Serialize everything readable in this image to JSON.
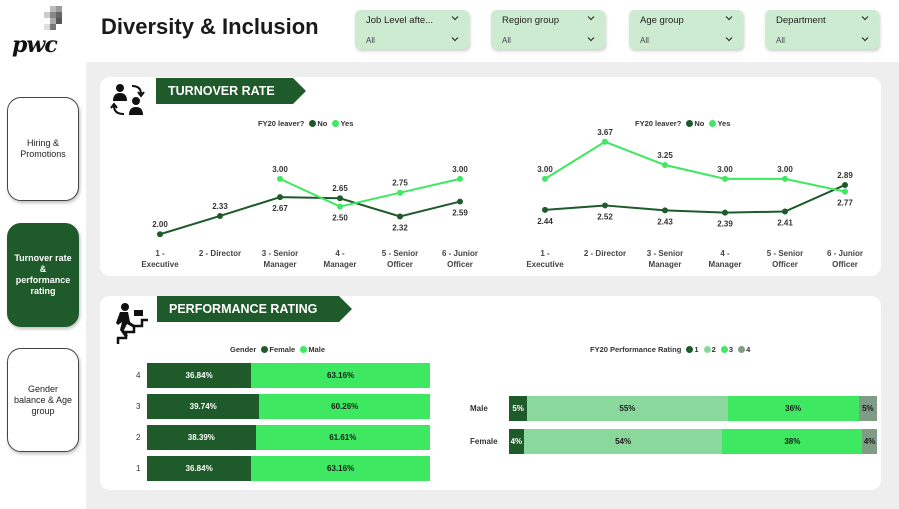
{
  "logo": {
    "text": "pwc"
  },
  "nav": [
    {
      "label": "Hiring & Promotions",
      "active": false
    },
    {
      "label": "Turnover rate & performance rating",
      "active": true
    },
    {
      "label": "Gender balance & Age group",
      "active": false
    }
  ],
  "header": {
    "title": "Diversity & Inclusion"
  },
  "slicers": [
    {
      "label": "Job Level afte...",
      "value": "All"
    },
    {
      "label": "Region group",
      "value": "All"
    },
    {
      "label": "Age group",
      "value": "All"
    },
    {
      "label": "Department",
      "value": "All"
    }
  ],
  "turnover": {
    "banner": "TURNOVER RATE",
    "icon": "people-exchange-icon",
    "colors": {
      "no": "#1e5a2a",
      "yes": "#3ee860"
    }
  },
  "performance": {
    "banner": "PERFORMANCE RATING",
    "icon": "person-climbing-stairs-icon"
  },
  "chart_data": [
    {
      "type": "line",
      "legend_title": "FY20 leaver?",
      "legend": [
        "No",
        "Yes"
      ],
      "categories": [
        [
          "1 -",
          "Executive"
        ],
        [
          "2 - Director"
        ],
        [
          "3 - Senior",
          "Manager"
        ],
        [
          "4 -",
          "Manager"
        ],
        [
          "5 - Senior",
          "Officer"
        ],
        [
          "6 - Junior",
          "Officer"
        ]
      ],
      "series": [
        {
          "name": "No",
          "values": [
            2.0,
            2.33,
            2.67,
            2.65,
            2.32,
            2.59
          ],
          "labels": [
            "2.00",
            "2.33",
            "2.67",
            "2.65",
            "2.32",
            "2.59"
          ]
        },
        {
          "name": "Yes",
          "values": [
            null,
            null,
            3.0,
            2.5,
            2.75,
            3.0
          ],
          "labels": [
            "",
            "",
            "3.00",
            "2.50",
            "2.75",
            "3.00"
          ]
        }
      ]
    },
    {
      "type": "line",
      "legend_title": "FY20 leaver?",
      "legend": [
        "No",
        "Yes"
      ],
      "categories": [
        [
          "1 -",
          "Executive"
        ],
        [
          "2 - Director"
        ],
        [
          "3 - Senior",
          "Manager"
        ],
        [
          "4 -",
          "Manager"
        ],
        [
          "5 - Senior",
          "Officer"
        ],
        [
          "6 - Junior",
          "Officer"
        ]
      ],
      "series": [
        {
          "name": "No",
          "values": [
            2.44,
            2.52,
            2.43,
            2.39,
            2.41,
            2.89
          ],
          "labels": [
            "2.44",
            "2.52",
            "2.43",
            "2.39",
            "2.41",
            "2.89"
          ]
        },
        {
          "name": "Yes",
          "values": [
            3.0,
            3.67,
            3.25,
            3.0,
            3.0,
            2.77
          ],
          "labels": [
            "3.00",
            "3.67",
            "3.25",
            "3.00",
            "3.00",
            "2.77"
          ]
        }
      ]
    },
    {
      "type": "bar",
      "stacked": "100%",
      "orientation": "horizontal",
      "legend_title": "Gender",
      "legend": [
        "Female",
        "Male"
      ],
      "categories": [
        "4",
        "3",
        "2",
        "1"
      ],
      "series": [
        {
          "name": "Female",
          "color": "#1e5a2a",
          "values": [
            36.84,
            39.74,
            38.39,
            36.84
          ],
          "labels": [
            "36.84%",
            "39.74%",
            "38.39%",
            "36.84%"
          ]
        },
        {
          "name": "Male",
          "color": "#3ee860",
          "values": [
            63.16,
            60.26,
            61.61,
            63.16
          ],
          "labels": [
            "63.16%",
            "60.26%",
            "61.61%",
            "63.16%"
          ]
        }
      ]
    },
    {
      "type": "bar",
      "stacked": "100%",
      "orientation": "horizontal",
      "legend_title": "FY20 Performance Rating",
      "legend": [
        "1",
        "2",
        "3",
        "4"
      ],
      "categories": [
        "Male",
        "Female"
      ],
      "series": [
        {
          "name": "1",
          "color": "#1e5a2a",
          "values": [
            5,
            4
          ],
          "labels": [
            "5%",
            "4%"
          ]
        },
        {
          "name": "2",
          "color": "#8bd89c",
          "values": [
            55,
            54
          ],
          "labels": [
            "55%",
            "54%"
          ]
        },
        {
          "name": "3",
          "color": "#3ee860",
          "values": [
            36,
            38
          ],
          "labels": [
            "36%",
            "38%"
          ]
        },
        {
          "name": "4",
          "color": "#7f9c84",
          "values": [
            5,
            4
          ],
          "labels": [
            "5%",
            "4%"
          ]
        }
      ]
    }
  ]
}
